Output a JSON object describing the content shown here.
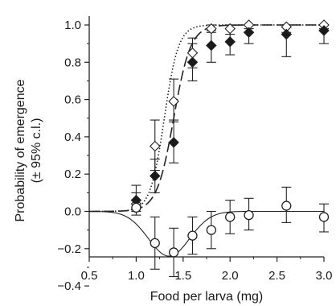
{
  "chart_data": {
    "type": "scatter",
    "xlabel": "Food per larva (mg)",
    "ylabel": "Probability of emergence",
    "ylabel2": "(± 95% c.l.)",
    "xlim": [
      0.5,
      3.0
    ],
    "ylim": [
      -0.4,
      1.05
    ],
    "xticks": [
      "0.5",
      "1.0",
      "1.5",
      "2.0",
      "2.5",
      "3.0"
    ],
    "yticks": [
      "−0.4",
      "−0.2",
      "0.0",
      "0.2",
      "0.4",
      "0.6",
      "0.8",
      "1.0"
    ],
    "grid": false,
    "series": [
      {
        "marker": "open-diamond",
        "line_style": "dotted",
        "points": [
          {
            "x": 1.0,
            "y": 0.04,
            "lo": 0.0,
            "hi": 0.1
          },
          {
            "x": 1.2,
            "y": 0.35,
            "lo": 0.22,
            "hi": 0.49
          },
          {
            "x": 1.4,
            "y": 0.59,
            "lo": 0.48,
            "hi": 0.71
          },
          {
            "x": 1.6,
            "y": 0.85,
            "lo": 0.77,
            "hi": 0.93
          },
          {
            "x": 1.8,
            "y": 0.98,
            "lo": 0.96,
            "hi": 1.0
          },
          {
            "x": 2.0,
            "y": 0.98,
            "lo": 0.95,
            "hi": 1.0
          },
          {
            "x": 2.2,
            "y": 1.0,
            "lo": 0.98,
            "hi": 1.0
          },
          {
            "x": 2.6,
            "y": 0.99,
            "lo": 0.96,
            "hi": 1.0
          },
          {
            "x": 3.0,
            "y": 1.0,
            "lo": 0.98,
            "hi": 1.0
          }
        ]
      },
      {
        "marker": "filled-diamond",
        "line_style": "dashed",
        "points": [
          {
            "x": 1.0,
            "y": 0.06,
            "lo": 0.0,
            "hi": 0.14
          },
          {
            "x": 1.2,
            "y": 0.19,
            "lo": 0.1,
            "hi": 0.28
          },
          {
            "x": 1.4,
            "y": 0.37,
            "lo": 0.26,
            "hi": 0.49
          },
          {
            "x": 1.6,
            "y": 0.8,
            "lo": 0.7,
            "hi": 0.9
          },
          {
            "x": 1.8,
            "y": 0.89,
            "lo": 0.8,
            "hi": 0.97
          },
          {
            "x": 2.0,
            "y": 0.91,
            "lo": 0.84,
            "hi": 0.98
          },
          {
            "x": 2.2,
            "y": 0.96,
            "lo": 0.9,
            "hi": 1.0
          },
          {
            "x": 2.6,
            "y": 0.95,
            "lo": 0.83,
            "hi": 1.0
          },
          {
            "x": 3.0,
            "y": 0.97,
            "lo": 0.9,
            "hi": 1.0
          }
        ]
      },
      {
        "marker": "open-circle",
        "line_style": "solid",
        "points": [
          {
            "x": 1.0,
            "y": 0.02,
            "lo": -0.02,
            "hi": 0.06
          },
          {
            "x": 1.2,
            "y": -0.17,
            "lo": -0.31,
            "hi": -0.03
          },
          {
            "x": 1.4,
            "y": -0.22,
            "lo": -0.35,
            "hi": -0.09
          },
          {
            "x": 1.6,
            "y": -0.13,
            "lo": -0.23,
            "hi": -0.03
          },
          {
            "x": 1.8,
            "y": -0.1,
            "lo": -0.2,
            "hi": 0.0
          },
          {
            "x": 2.0,
            "y": -0.03,
            "lo": -0.12,
            "hi": 0.06
          },
          {
            "x": 2.2,
            "y": -0.02,
            "lo": -0.1,
            "hi": 0.07
          },
          {
            "x": 2.6,
            "y": 0.03,
            "lo": -0.06,
            "hi": 0.13
          },
          {
            "x": 3.0,
            "y": -0.03,
            "lo": -0.11,
            "hi": 0.04
          }
        ]
      }
    ]
  }
}
